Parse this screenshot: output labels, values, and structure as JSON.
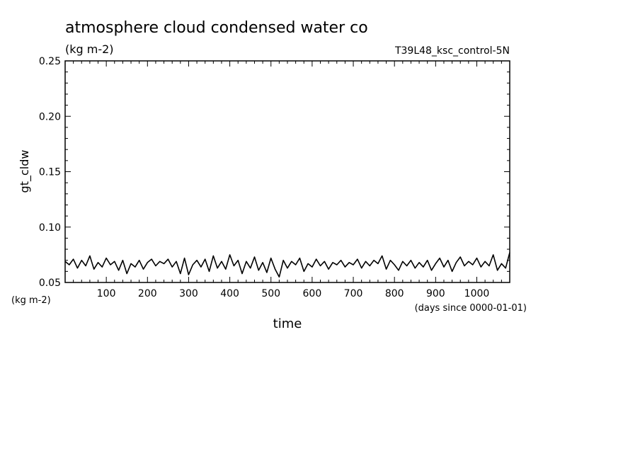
{
  "chart_data": {
    "type": "line",
    "title": "atmosphere cloud condensed water co",
    "subtitle": "(kg m-2)",
    "run_label": "T39L48_ksc_control-5N",
    "xlabel": "time",
    "x_units": "(days since 0000-01-01)",
    "ylabel": "gt_cldw",
    "y_units": "(kg m-2)",
    "xlim": [
      0,
      1080
    ],
    "ylim": [
      0.05,
      0.25
    ],
    "x_ticks": [
      100,
      200,
      300,
      400,
      500,
      600,
      700,
      800,
      900,
      1000
    ],
    "x_tick_labels": [
      "100",
      "200",
      "300",
      "400",
      "500",
      "600",
      "700",
      "800",
      "900",
      "1000"
    ],
    "y_ticks": [
      0.05,
      0.1,
      0.15,
      0.2,
      0.25
    ],
    "y_tick_labels": [
      "0.05",
      "0.10",
      "0.15",
      "0.20",
      "0.25"
    ],
    "grid": false,
    "line_color": "#000000",
    "series": [
      {
        "x": [
          0,
          10,
          20,
          30,
          40,
          50,
          60,
          70,
          80,
          90,
          100,
          110,
          120,
          130,
          140,
          150,
          160,
          170,
          180,
          190,
          200,
          210,
          220,
          230,
          240,
          250,
          260,
          270,
          280,
          290,
          300,
          310,
          320,
          330,
          340,
          350,
          360,
          370,
          380,
          390,
          400,
          410,
          420,
          430,
          440,
          450,
          460,
          470,
          480,
          490,
          500,
          510,
          520,
          530,
          540,
          550,
          560,
          570,
          580,
          590,
          600,
          610,
          620,
          630,
          640,
          650,
          660,
          670,
          680,
          690,
          700,
          710,
          720,
          730,
          740,
          750,
          760,
          770,
          780,
          790,
          800,
          810,
          820,
          830,
          840,
          850,
          860,
          870,
          880,
          890,
          900,
          910,
          920,
          930,
          940,
          950,
          960,
          970,
          980,
          990,
          1000,
          1010,
          1020,
          1030,
          1040,
          1050,
          1060,
          1070,
          1080
        ],
        "values": [
          0.069,
          0.066,
          0.071,
          0.063,
          0.07,
          0.065,
          0.074,
          0.062,
          0.068,
          0.064,
          0.072,
          0.066,
          0.069,
          0.061,
          0.07,
          0.058,
          0.067,
          0.064,
          0.07,
          0.062,
          0.068,
          0.071,
          0.065,
          0.069,
          0.067,
          0.071,
          0.064,
          0.069,
          0.058,
          0.072,
          0.057,
          0.066,
          0.07,
          0.064,
          0.071,
          0.06,
          0.074,
          0.063,
          0.069,
          0.062,
          0.075,
          0.065,
          0.07,
          0.058,
          0.069,
          0.063,
          0.073,
          0.061,
          0.068,
          0.059,
          0.072,
          0.062,
          0.055,
          0.07,
          0.063,
          0.069,
          0.066,
          0.072,
          0.06,
          0.067,
          0.064,
          0.071,
          0.065,
          0.069,
          0.062,
          0.068,
          0.066,
          0.07,
          0.064,
          0.068,
          0.066,
          0.071,
          0.063,
          0.069,
          0.065,
          0.07,
          0.067,
          0.074,
          0.062,
          0.07,
          0.066,
          0.061,
          0.069,
          0.065,
          0.07,
          0.063,
          0.068,
          0.064,
          0.07,
          0.061,
          0.067,
          0.072,
          0.064,
          0.07,
          0.06,
          0.068,
          0.073,
          0.065,
          0.069,
          0.066,
          0.072,
          0.064,
          0.069,
          0.065,
          0.075,
          0.061,
          0.067,
          0.063,
          0.077
        ]
      }
    ]
  }
}
